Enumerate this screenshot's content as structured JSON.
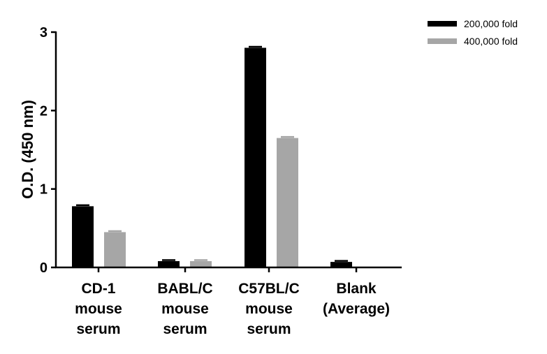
{
  "chart_data": {
    "type": "bar",
    "categories": [
      [
        "CD-1",
        "mouse",
        "serum"
      ],
      [
        "BABL/C",
        "mouse",
        "serum"
      ],
      [
        "C57BL/C",
        "mouse",
        "serum"
      ],
      [
        "Blank",
        "(Average)"
      ]
    ],
    "series": [
      {
        "name": "200,000 fold",
        "color": "#000000",
        "values": [
          0.78,
          0.08,
          2.8,
          0.07
        ]
      },
      {
        "name": "400,000 fold",
        "color": "#a6a6a6",
        "values": [
          0.45,
          0.08,
          1.65,
          null
        ]
      }
    ],
    "title": "",
    "xlabel": "",
    "ylabel": "O.D. (450 nm)",
    "ylim": [
      0,
      3
    ],
    "yticks": [
      0,
      1,
      2,
      3
    ],
    "grid": false,
    "legend_position": "top-right"
  }
}
